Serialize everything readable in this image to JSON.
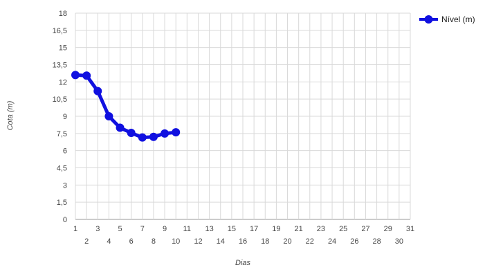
{
  "chart_data": {
    "type": "line",
    "xlabel": "Dias",
    "ylabel": "Cota (m)",
    "xlim": [
      1,
      31
    ],
    "ylim": [
      0,
      18
    ],
    "x_ticks": [
      1,
      2,
      3,
      4,
      5,
      6,
      7,
      8,
      9,
      10,
      11,
      12,
      13,
      14,
      15,
      16,
      17,
      18,
      19,
      20,
      21,
      22,
      23,
      24,
      25,
      26,
      27,
      28,
      29,
      30,
      31
    ],
    "y_ticks": [
      0,
      1.5,
      3,
      4.5,
      6,
      7.5,
      9,
      10.5,
      12,
      13.5,
      15,
      16.5,
      18
    ],
    "y_tick_labels": [
      "0",
      "1,5",
      "3",
      "4,5",
      "6",
      "7,5",
      "9",
      "10,5",
      "12",
      "13,5",
      "15",
      "16,5",
      "18"
    ],
    "grid": true,
    "legend_position": "top-right",
    "series": [
      {
        "name": "Nível (m)",
        "color": "#1010e0",
        "x": [
          1,
          2,
          3,
          4,
          5,
          6,
          7,
          8,
          9,
          10
        ],
        "y": [
          12.6,
          12.55,
          11.2,
          9.0,
          8.0,
          7.55,
          7.15,
          7.2,
          7.5,
          7.6
        ]
      }
    ]
  }
}
